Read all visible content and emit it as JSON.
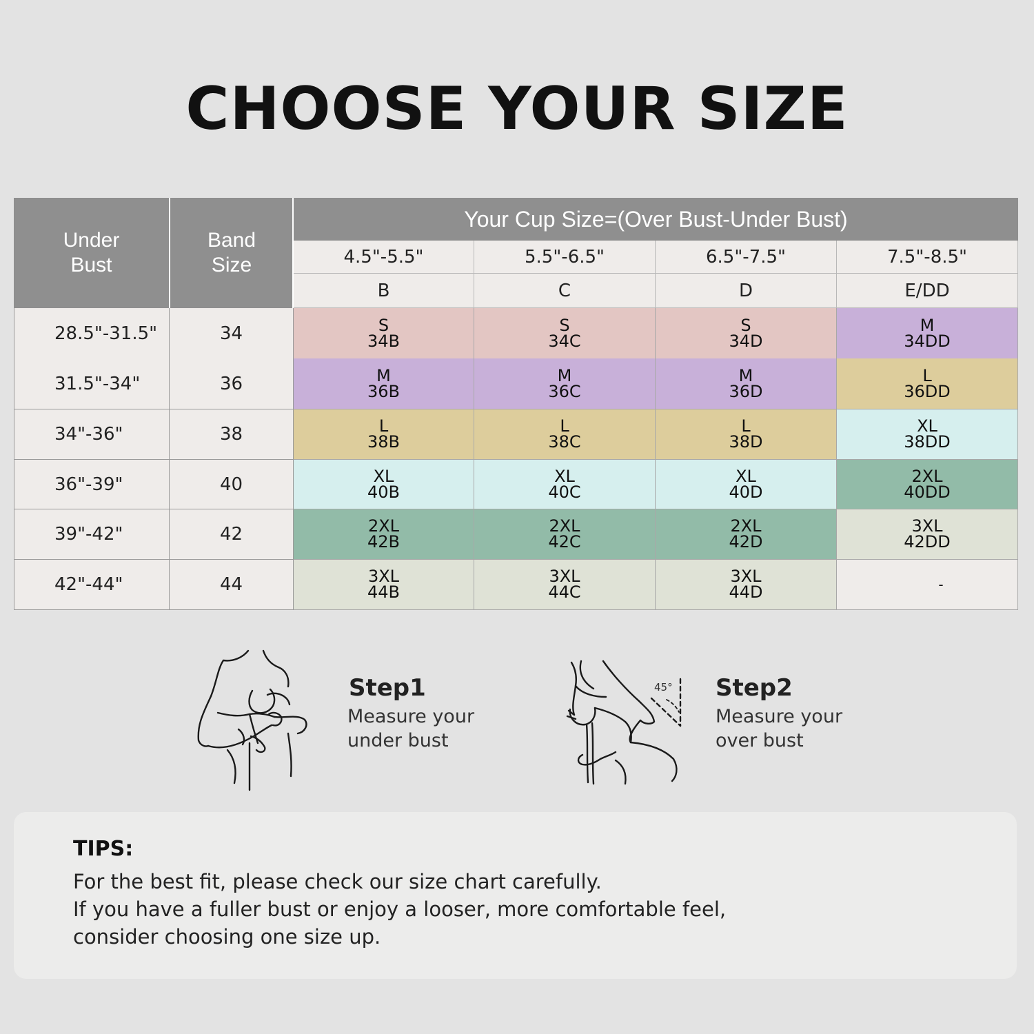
{
  "title": "CHOOSE YOUR SIZE",
  "table": {
    "header_under_bust": [
      "Under",
      "Bust"
    ],
    "header_band_size": [
      "Band",
      "Size"
    ],
    "cup_title": "Your Cup Size=(Over Bust-Under Bust)",
    "cup_ranges": [
      "4.5\"-5.5\"",
      "5.5\"-6.5\"",
      "6.5\"-7.5\"",
      "7.5\"-8.5\""
    ],
    "cup_letters": [
      "B",
      "C",
      "D",
      "E/DD"
    ],
    "rows": [
      {
        "under_bust": "28.5\"-31.5\"",
        "band": "34",
        "cells": [
          [
            "S",
            "34B"
          ],
          [
            "S",
            "34C"
          ],
          [
            "S",
            "34D"
          ],
          [
            "M",
            "34DD"
          ]
        ]
      },
      {
        "under_bust": "31.5\"-34\"",
        "band": "36",
        "cells": [
          [
            "M",
            "36B"
          ],
          [
            "M",
            "36C"
          ],
          [
            "M",
            "36D"
          ],
          [
            "L",
            "36DD"
          ]
        ]
      },
      {
        "under_bust": "34\"-36\"",
        "band": "38",
        "cells": [
          [
            "L",
            "38B"
          ],
          [
            "L",
            "38C"
          ],
          [
            "L",
            "38D"
          ],
          [
            "XL",
            "38DD"
          ]
        ]
      },
      {
        "under_bust": "36\"-39\"",
        "band": "40",
        "cells": [
          [
            "XL",
            "40B"
          ],
          [
            "XL",
            "40C"
          ],
          [
            "XL",
            "40D"
          ],
          [
            "2XL",
            "40DD"
          ]
        ]
      },
      {
        "under_bust": "39\"-42\"",
        "band": "42",
        "cells": [
          [
            "2XL",
            "42B"
          ],
          [
            "2XL",
            "42C"
          ],
          [
            "2XL",
            "42D"
          ],
          [
            "3XL",
            "42DD"
          ]
        ]
      },
      {
        "under_bust": "42\"-44\"",
        "band": "44",
        "cells": [
          [
            "3XL",
            "44B"
          ],
          [
            "3XL",
            "44C"
          ],
          [
            "3XL",
            "44D"
          ],
          [
            "-",
            ""
          ]
        ]
      }
    ],
    "size_colors": {
      "S": "#e3c6c3",
      "M": "#c8b0d9",
      "L": "#ddcd9c",
      "XL": "#d6efee",
      "2XL": "#92bba8",
      "3XL": "#dfe2d6",
      "-": "#efecea"
    }
  },
  "steps": [
    {
      "title": "Step1",
      "desc": [
        "Measure your",
        "under bust"
      ],
      "icon": "under-bust-measure-illustration"
    },
    {
      "title": "Step2",
      "desc": [
        "Measure your",
        "over bust"
      ],
      "icon": "over-bust-measure-illustration",
      "angle_label": "45°"
    }
  ],
  "tips": {
    "title": "TIPS:",
    "lines": [
      "For the best fit, please check our size chart carefully.",
      "If you have a fuller bust or enjoy a looser, more comfortable feel,",
      "consider choosing one size up."
    ]
  }
}
